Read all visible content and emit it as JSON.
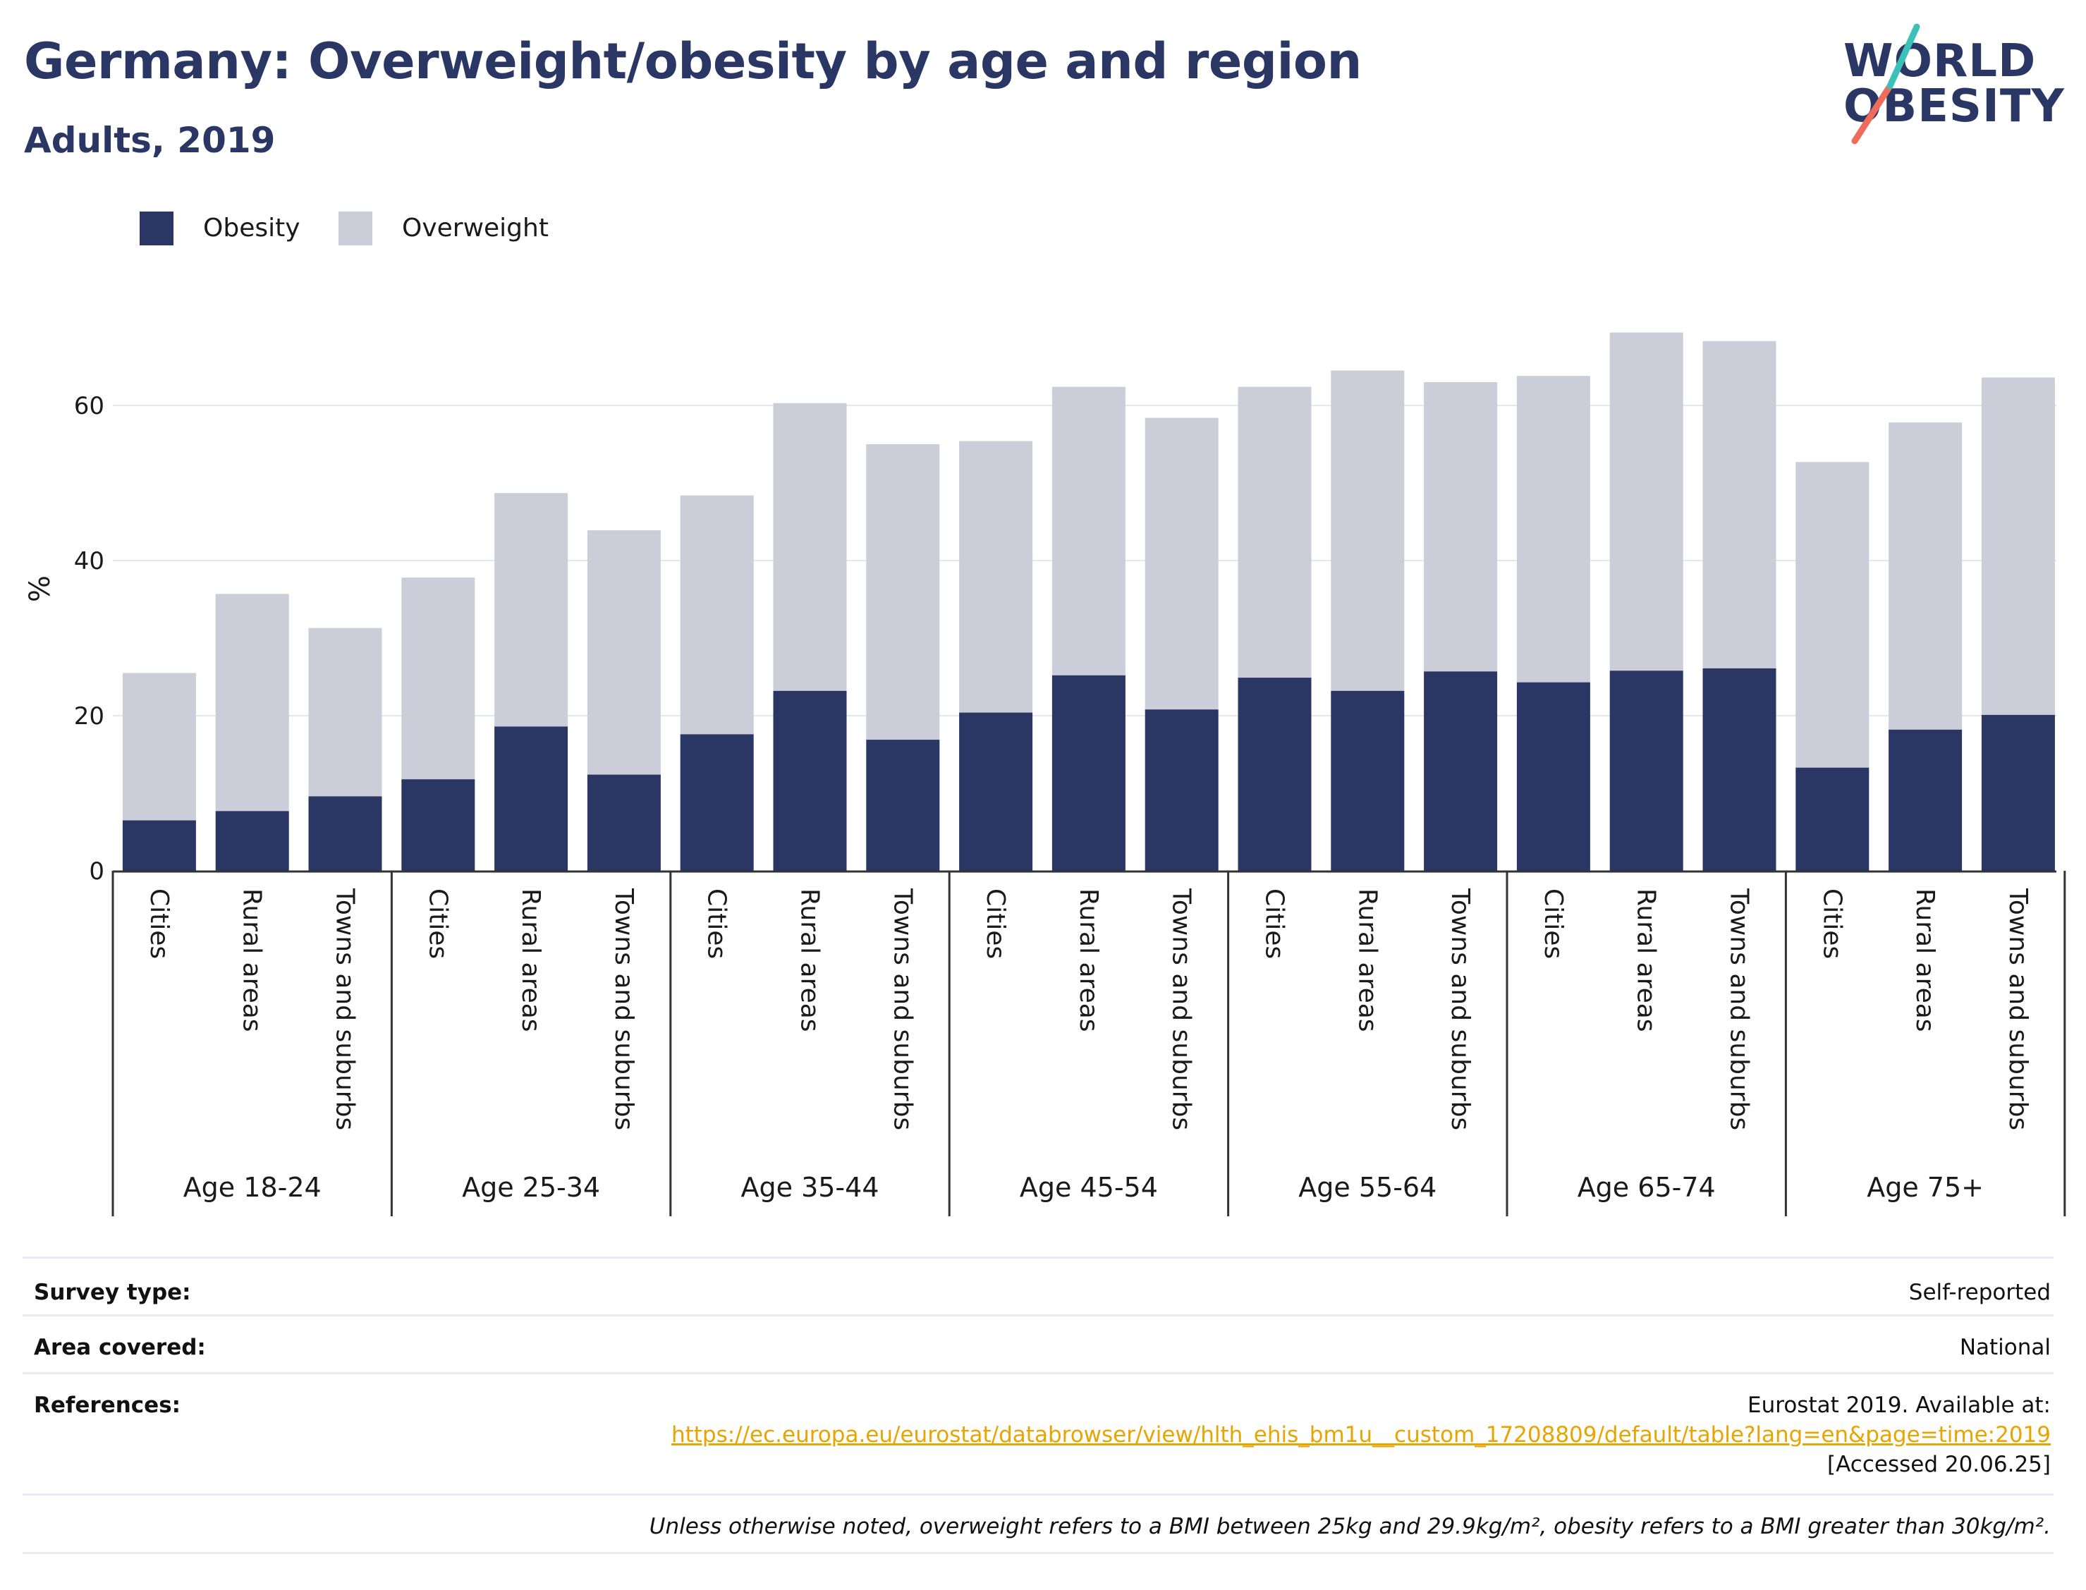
{
  "header": {
    "title": "Germany: Overweight/obesity by age and region",
    "subtitle": "Adults, 2019"
  },
  "logo": {
    "line1": "WORLD",
    "line2": "OBESITY"
  },
  "legend": [
    {
      "label": "Obesity",
      "color": "#2a3764"
    },
    {
      "label": "Overweight",
      "color": "#cbcdd9"
    }
  ],
  "chart_data": {
    "type": "bar",
    "stacked": true,
    "ylabel": "%",
    "ylim": [
      0,
      75
    ],
    "yticks": [
      0,
      20,
      40,
      60
    ],
    "grid": true,
    "legend_position": "top-left",
    "groups": [
      "Age 18-24",
      "Age 25-34",
      "Age 35-44",
      "Age 45-54",
      "Age 55-64",
      "Age 65-74",
      "Age 75+"
    ],
    "subcategories": [
      "Cities",
      "Rural areas",
      "Towns and suburbs"
    ],
    "series": [
      {
        "name": "Obesity",
        "color": "#2a3764",
        "values": [
          6.5,
          7.7,
          9.6,
          11.8,
          18.6,
          12.4,
          17.6,
          23.2,
          16.9,
          20.4,
          25.2,
          20.8,
          24.9,
          23.2,
          25.7,
          24.3,
          25.8,
          26.1,
          13.3,
          18.2,
          20.1
        ]
      },
      {
        "name": "Overweight",
        "color": "#cbcdd9",
        "values": [
          19.0,
          28.0,
          21.7,
          26.0,
          30.1,
          31.5,
          30.8,
          37.1,
          38.1,
          35.0,
          37.2,
          37.6,
          37.5,
          41.3,
          37.3,
          39.5,
          43.6,
          42.2,
          39.4,
          39.6,
          43.5
        ]
      }
    ]
  },
  "info": {
    "survey_type_label": "Survey type:",
    "survey_type_value": "Self-reported",
    "area_label": "Area covered:",
    "area_value": "National",
    "references_label": "References:",
    "references_line1": "Eurostat 2019. Available at:",
    "references_link": "https://ec.europa.eu/eurostat/databrowser/view/hlth_ehis_bm1u__custom_17208809/default/table?lang=en&page=time:2019",
    "references_line3": "[Accessed 20.06.25]",
    "note": "Unless otherwise noted, overweight refers to a BMI between 25kg and 29.9kg/m², obesity refers to a BMI greater than 30kg/m²."
  }
}
